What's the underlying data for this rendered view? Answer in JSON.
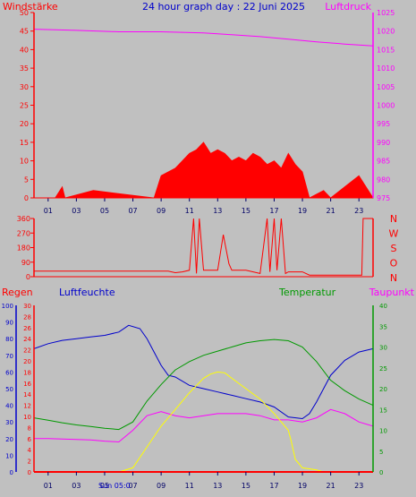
{
  "colors": {
    "background": "#c0c0c0",
    "plot": "#c0c0c0",
    "wind": "#ff0000",
    "pressure": "#ff00ff",
    "direction": "#ff0000",
    "rain": "#ff0000",
    "humidity": "#0000cc",
    "temperature": "#009900",
    "dewpoint": "#ff00ff",
    "solar": "#ffff00",
    "axis_time": "#000066"
  },
  "chart_data": [
    {
      "type": "line",
      "title": "24 hour graph day : 22 Juni 2025",
      "left_label": "Windstärke",
      "right_label": "Luftdruck",
      "x_ticks": [
        "01",
        "03",
        "05",
        "07",
        "09",
        "11",
        "13",
        "15",
        "17",
        "19",
        "21",
        "23"
      ],
      "y_left": {
        "ticks": [
          "0",
          "5",
          "10",
          "15",
          "20",
          "25",
          "30",
          "35",
          "40",
          "45",
          "50"
        ],
        "range": [
          0,
          50
        ]
      },
      "y_right": {
        "ticks": [
          "975",
          "980",
          "985",
          "990",
          "995",
          "1000",
          "1005",
          "1010",
          "1015",
          "1020",
          "1025"
        ],
        "range": [
          975,
          1025
        ]
      },
      "series": [
        {
          "name": "Luftdruck",
          "axis": "right",
          "x": [
            0,
            3,
            6,
            9,
            12,
            14,
            16,
            18,
            20,
            22,
            24
          ],
          "values": [
            1020.5,
            1020.2,
            1019.8,
            1019.8,
            1019.5,
            1019.0,
            1018.5,
            1017.8,
            1017.1,
            1016.5,
            1016.0
          ]
        },
        {
          "name": "Windstärke",
          "type": "area",
          "axis": "left",
          "x": [
            0,
            1.5,
            2.0,
            2.2,
            4.2,
            8.5,
            9.0,
            9.5,
            10.0,
            10.5,
            11.0,
            11.5,
            12.0,
            12.5,
            13.0,
            13.5,
            14.0,
            14.5,
            15.0,
            15.5,
            16.0,
            16.5,
            17.0,
            17.5,
            18.0,
            18.5,
            19.0,
            19.5,
            20.5,
            21.0,
            23.0,
            24
          ],
          "values": [
            0,
            0,
            3,
            0,
            2,
            0,
            6,
            7,
            8,
            10,
            12,
            13,
            15,
            12,
            13,
            12,
            10,
            11,
            10,
            12,
            11,
            9,
            10,
            8,
            12,
            9,
            7,
            0,
            2,
            0,
            6,
            0
          ]
        }
      ]
    },
    {
      "type": "line",
      "right_letters": [
        "N",
        "W",
        "S",
        "O",
        "N"
      ],
      "y_left": {
        "ticks": [
          "360",
          "270",
          "180",
          "90",
          "0"
        ],
        "range": [
          0,
          360
        ]
      },
      "series": [
        {
          "name": "Windrichtung",
          "x": [
            0,
            9.5,
            10.0,
            10.5,
            11.0,
            11.3,
            11.5,
            11.7,
            12,
            13,
            13.4,
            13.8,
            14,
            14.5,
            15,
            16,
            16.5,
            16.7,
            17,
            17.2,
            17.5,
            17.8,
            18,
            19,
            19.5,
            20,
            22,
            23.2,
            23.3,
            24
          ],
          "values": [
            35,
            35,
            25,
            30,
            40,
            360,
            20,
            360,
            40,
            40,
            260,
            80,
            40,
            40,
            40,
            20,
            360,
            30,
            360,
            40,
            360,
            20,
            30,
            30,
            10,
            10,
            10,
            10,
            360,
            360
          ]
        }
      ]
    },
    {
      "type": "line",
      "left_labels": [
        "Regen",
        "Luftfeuchte"
      ],
      "right_labels": [
        "Temperatur",
        "Taupunkt"
      ],
      "sun_label": "Sun 05:0",
      "x_ticks": [
        "01",
        "03",
        "05",
        "07",
        "09",
        "11",
        "13",
        "15",
        "17",
        "19",
        "21",
        "23"
      ],
      "y_humidity": {
        "ticks": [
          "0",
          "10",
          "20",
          "30",
          "40",
          "50",
          "60",
          "70",
          "80",
          "90",
          "100"
        ],
        "range": [
          0,
          100
        ]
      },
      "y_rain": {
        "ticks": [
          "0",
          "2",
          "4",
          "6",
          "8",
          "10",
          "12",
          "14",
          "16",
          "18",
          "20",
          "22",
          "24",
          "26",
          "28",
          "30"
        ],
        "range": [
          0,
          30
        ]
      },
      "y_temp": {
        "ticks": [
          "0",
          "5",
          "10",
          "15",
          "20",
          "25",
          "30",
          "35",
          "40"
        ],
        "range": [
          0,
          40
        ]
      },
      "series": [
        {
          "name": "Luftfeuchte",
          "axis": "humidity",
          "x": [
            0,
            1,
            2,
            3,
            4,
            5,
            6,
            6.7,
            7.5,
            8,
            8.5,
            9,
            9.5,
            10,
            11,
            12,
            13,
            14,
            15,
            16,
            17,
            18,
            19,
            19.5,
            20,
            21,
            22,
            23,
            24
          ],
          "values": [
            74,
            77,
            79,
            80,
            81,
            82,
            84,
            88,
            86,
            80,
            72,
            64,
            58,
            57,
            52,
            50,
            48,
            46,
            44,
            42,
            39,
            33,
            32,
            35,
            42,
            58,
            67,
            72,
            74
          ]
        },
        {
          "name": "Temperatur",
          "axis": "temp",
          "x": [
            0,
            1,
            2,
            3,
            4,
            5,
            6,
            7,
            8,
            9,
            10,
            11,
            12,
            13,
            14,
            15,
            16,
            17,
            18,
            19,
            20,
            21,
            22,
            23,
            24
          ],
          "values": [
            13,
            12.4,
            11.8,
            11.3,
            10.9,
            10.5,
            10.2,
            12,
            17,
            21,
            24.5,
            26.5,
            28,
            29,
            30,
            31,
            31.5,
            31.8,
            31.5,
            30,
            26.5,
            22,
            19.5,
            17.5,
            16
          ]
        },
        {
          "name": "Taupunkt",
          "axis": "temp",
          "x": [
            0,
            1,
            2,
            3,
            4,
            5,
            6,
            7,
            8,
            9,
            10,
            11,
            12,
            13,
            14,
            15,
            16,
            17,
            18,
            19,
            20,
            21,
            22,
            23,
            24
          ],
          "values": [
            8,
            8,
            7.9,
            7.8,
            7.7,
            7.4,
            7.2,
            10,
            13.5,
            14.5,
            13.5,
            13,
            13.5,
            14,
            14,
            14,
            13.5,
            12.5,
            12.5,
            12,
            13,
            15,
            14,
            12,
            11
          ]
        },
        {
          "name": "Solar",
          "axis": "temp",
          "x": [
            5,
            6,
            7,
            8,
            9,
            10,
            11,
            12,
            12.5,
            13,
            13.5,
            14,
            15,
            16,
            17,
            17.5,
            18,
            18.2,
            18.5,
            19,
            20,
            20.5
          ],
          "values": [
            0,
            0,
            1,
            6,
            11,
            15,
            19,
            22.5,
            23.5,
            24,
            23.8,
            22.5,
            20,
            17.5,
            14,
            12,
            10,
            7.5,
            3,
            1,
            0.5,
            0
          ]
        },
        {
          "name": "Regen",
          "axis": "rain",
          "x": [
            0,
            24
          ],
          "values": [
            0,
            0
          ]
        }
      ]
    }
  ]
}
